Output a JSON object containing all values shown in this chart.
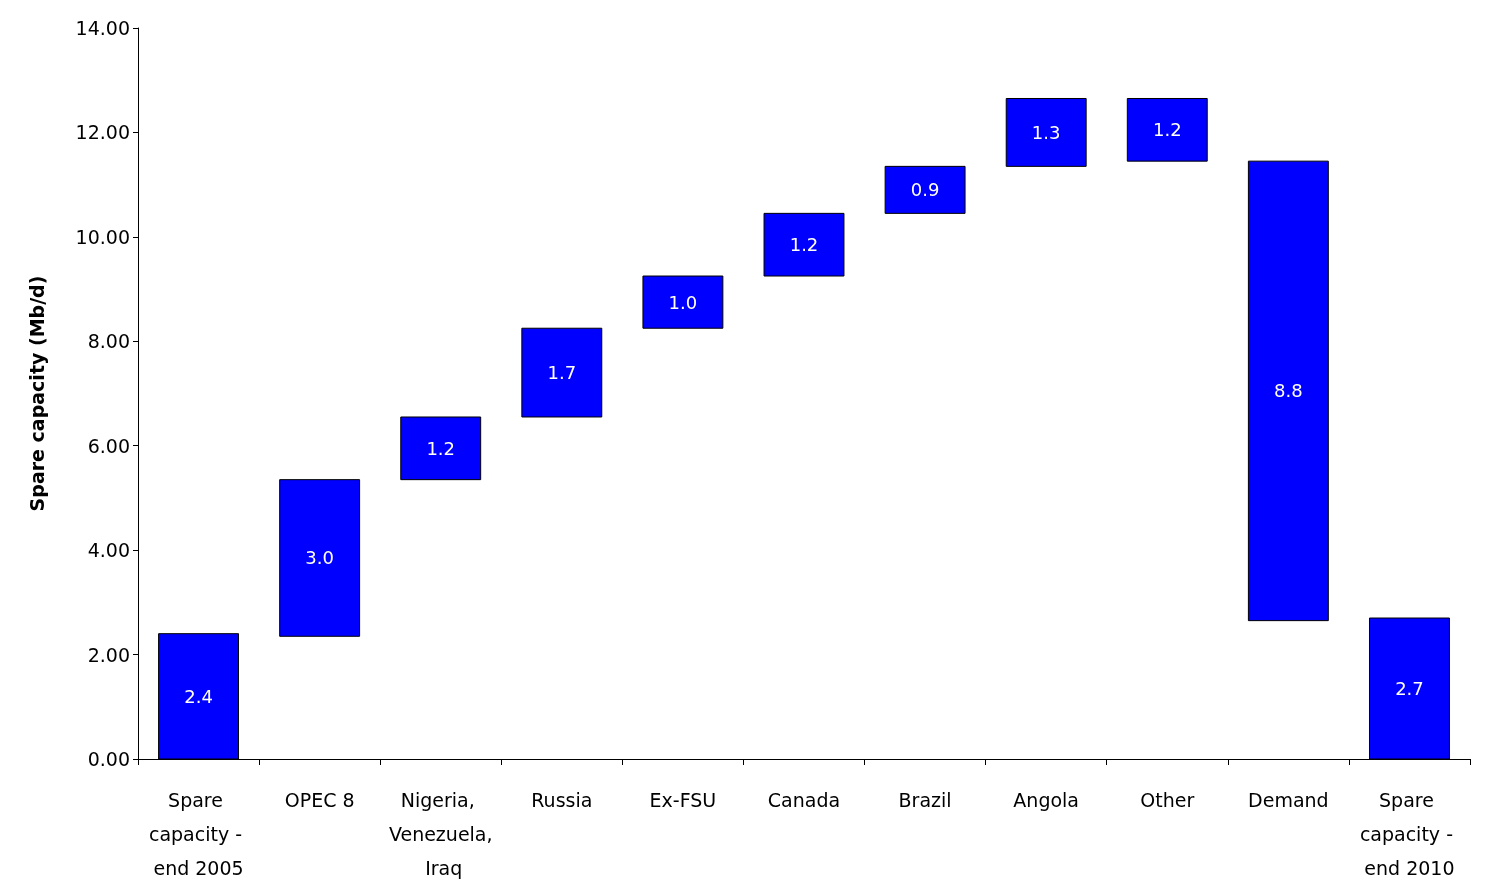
{
  "chart_data": {
    "type": "bar",
    "ylabel": "Spare capacity (Mb/d)",
    "categories": [
      "Spare capacity - end 2005",
      "OPEC 8",
      "Nigeria, Venezuela, Iraq",
      "Russia",
      "Ex-FSU",
      "Canada",
      "Brazil",
      "Angola",
      "Other",
      "Demand",
      "Spare capacity - end 2010"
    ],
    "values": [
      2.4,
      3.0,
      1.2,
      1.7,
      1.0,
      1.2,
      0.9,
      1.3,
      1.2,
      8.8,
      2.7
    ],
    "base": [
      0,
      2.35,
      5.35,
      6.55,
      8.25,
      9.25,
      10.45,
      11.35,
      11.45,
      2.65,
      0
    ],
    "value_labels": [
      "2.4",
      "3.0",
      "1.2",
      "1.7",
      "1.0",
      "1.2",
      "0.9",
      "1.3",
      "1.2",
      "8.8",
      "2.7"
    ],
    "color": "#0000ff",
    "ylim": [
      0,
      14
    ],
    "yticks": [
      {
        "value": 0,
        "label": "0.00"
      },
      {
        "value": 2,
        "label": "2.00"
      },
      {
        "value": 4,
        "label": "4.00"
      },
      {
        "value": 6,
        "label": "6.00"
      },
      {
        "value": 8,
        "label": "8.00"
      },
      {
        "value": 10,
        "label": "10.00"
      },
      {
        "value": 12,
        "label": "12.00"
      },
      {
        "value": 14,
        "label": "14.00"
      }
    ]
  }
}
